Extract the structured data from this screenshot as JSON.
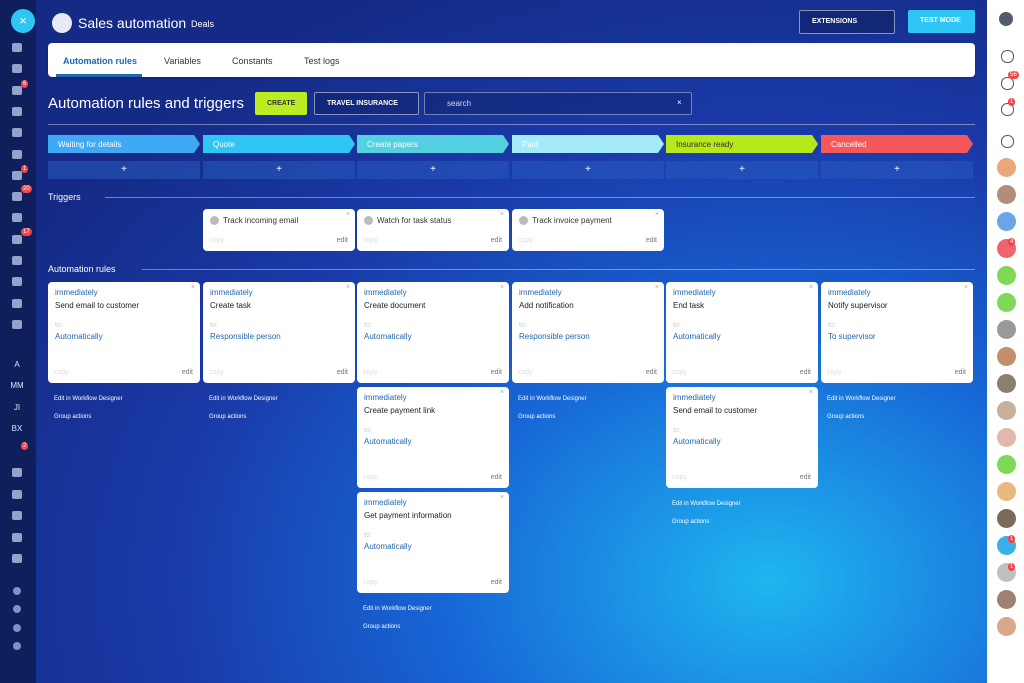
{
  "header": {
    "title": "Sales automation",
    "subtitle": "Deals",
    "extensions": "EXTENSIONS",
    "test_mode": "TEST MODE"
  },
  "tabs": [
    "Automation rules",
    "Variables",
    "Constants",
    "Test logs"
  ],
  "toolbar": {
    "title": "Automation rules and triggers",
    "create": "CREATE",
    "pipeline": "TRAVEL INSURANCE",
    "search_placeholder": "search"
  },
  "add_label": "+",
  "triggers_title": "Triggers",
  "rules_title": "Automation rules",
  "copy_label": "copy",
  "edit_label": "edit",
  "to_label": "to:",
  "designer_link": "Edit in Workflow Designer",
  "group_actions": "Group actions",
  "columns": [
    {
      "stage": "Waiting for details",
      "color": "#3fa9f5",
      "triggers": [],
      "rules": [
        {
          "timing": "immediately",
          "action": "Send email to customer",
          "target": "Automatically"
        }
      ]
    },
    {
      "stage": "Quote",
      "color": "#2fc6f6",
      "triggers": [
        {
          "name": "Track incoming email"
        }
      ],
      "rules": [
        {
          "timing": "immediately",
          "action": "Create task",
          "target": "Responsible person"
        }
      ]
    },
    {
      "stage": "Create papers",
      "color": "#55d0e0",
      "triggers": [
        {
          "name": "Watch for task status"
        }
      ],
      "rules": [
        {
          "timing": "immediately",
          "action": "Create document",
          "target": "Automatically"
        },
        {
          "timing": "immediately",
          "action": "Create payment link",
          "target": "Automatically"
        },
        {
          "timing": "immediately",
          "action": "Get payment information",
          "target": "Automatically"
        }
      ]
    },
    {
      "stage": "Paid",
      "color": "#a5eafb",
      "triggers": [
        {
          "name": "Track invoice payment"
        }
      ],
      "rules": [
        {
          "timing": "immediately",
          "action": "Add notification",
          "target": "Responsible person"
        }
      ]
    },
    {
      "stage": "Insurance ready",
      "color": "#b6e81b",
      "triggers": [],
      "rules": [
        {
          "timing": "immediately",
          "action": "End task",
          "target": "Automatically"
        },
        {
          "timing": "immediately",
          "action": "Send email to customer",
          "target": "Automatically"
        }
      ]
    },
    {
      "stage": "Cancelled",
      "color": "#f5585a",
      "triggers": [],
      "rules": [
        {
          "timing": "immediately",
          "action": "Notify supervisor",
          "target": "To supervisor"
        }
      ]
    }
  ],
  "left_sidebar": {
    "letters": [
      "A",
      "MM",
      "JI",
      "BX"
    ],
    "badges": [
      "6",
      "1",
      "20",
      "17",
      "2"
    ]
  },
  "right_sidebar": {
    "badges": [
      "56",
      "1",
      "4",
      "1",
      "1"
    ]
  }
}
